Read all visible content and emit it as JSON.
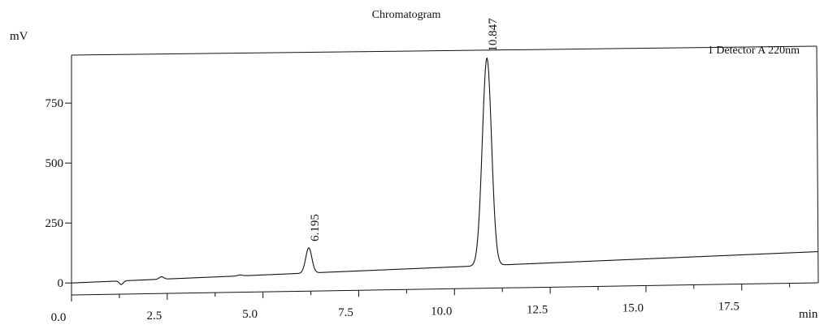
{
  "chart_data": {
    "type": "line",
    "title": "Chromatogram",
    "y_unit": "mV",
    "x_unit": "min",
    "legend": "1 Detector A 220nm",
    "legend_position": "top-right",
    "xlim": [
      0,
      19.5
    ],
    "ylim": [
      -50,
      950
    ],
    "x_ticks": [
      "0.0",
      "2.5",
      "5.0",
      "7.5",
      "10.0",
      "12.5",
      "15.0",
      "17.5"
    ],
    "y_ticks": [
      "0",
      "250",
      "500",
      "750"
    ],
    "x_tick_values": [
      0,
      2.5,
      5,
      7.5,
      10,
      12.5,
      15,
      17.5
    ],
    "y_tick_values": [
      0,
      250,
      500,
      750
    ],
    "baseline": {
      "start": 0,
      "end": 80
    },
    "peaks": [
      {
        "retention_time": 1.3,
        "height": -15,
        "width": 0.05,
        "label": ""
      },
      {
        "retention_time": 2.35,
        "height": 10,
        "width": 0.06,
        "label": ""
      },
      {
        "retention_time": 4.4,
        "height": 4,
        "width": 0.06,
        "label": ""
      },
      {
        "retention_time": 6.195,
        "height": 105,
        "width": 0.08,
        "label": "6.195"
      },
      {
        "retention_time": 10.847,
        "height": 865,
        "width": 0.12,
        "label": "10.847"
      }
    ],
    "grid": false
  }
}
